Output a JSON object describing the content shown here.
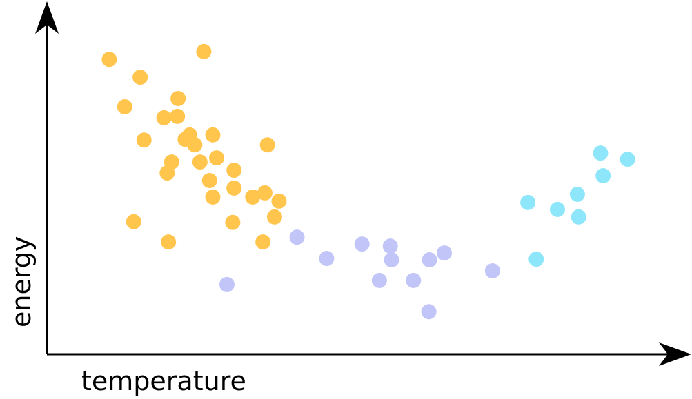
{
  "chart_data": {
    "type": "scatter",
    "x_label": "temperature",
    "y_label": "energy",
    "xlim": [
      0,
      100
    ],
    "ylim": [
      0,
      100
    ],
    "series": [
      {
        "color": "#ffc54d",
        "x": [
          9.7,
          24.4,
          14.5,
          12.1,
          20.4,
          18.2,
          20.3,
          15.1,
          22.2,
          21.5,
          23.0,
          25.8,
          19.4,
          18.7,
          23.8,
          26.4,
          34.3,
          29.1,
          25.3,
          29.1,
          25.8,
          32.0,
          33.9,
          36.1,
          35.4,
          13.5,
          28.9,
          18.9,
          33.6
        ],
        "values": [
          85.7,
          88.0,
          80.5,
          71.9,
          74.3,
          68.7,
          69.1,
          62.2,
          63.7,
          62.4,
          60.8,
          63.7,
          55.8,
          52.6,
          55.8,
          57.0,
          60.8,
          53.4,
          50.4,
          48.2,
          45.6,
          45.6,
          46.8,
          44.4,
          39.8,
          38.4,
          38.2,
          32.5,
          32.5
        ]
      },
      {
        "color": "#c2c5f8",
        "x": [
          28.0,
          38.9,
          43.5,
          49.0,
          53.4,
          53.6,
          51.7,
          57.0,
          59.5,
          61.8,
          59.4,
          69.3
        ],
        "values": [
          20.1,
          33.9,
          27.7,
          31.9,
          31.3,
          27.3,
          21.3,
          21.3,
          27.3,
          29.3,
          12.2,
          24.1
        ]
      },
      {
        "color": "#8ee6fa",
        "x": [
          74.8,
          76.1,
          79.4,
          82.5,
          82.7,
          86.1,
          86.5,
          90.3
        ],
        "values": [
          44.0,
          27.5,
          42.0,
          46.4,
          39.8,
          58.4,
          51.8,
          56.6
        ]
      }
    ]
  }
}
